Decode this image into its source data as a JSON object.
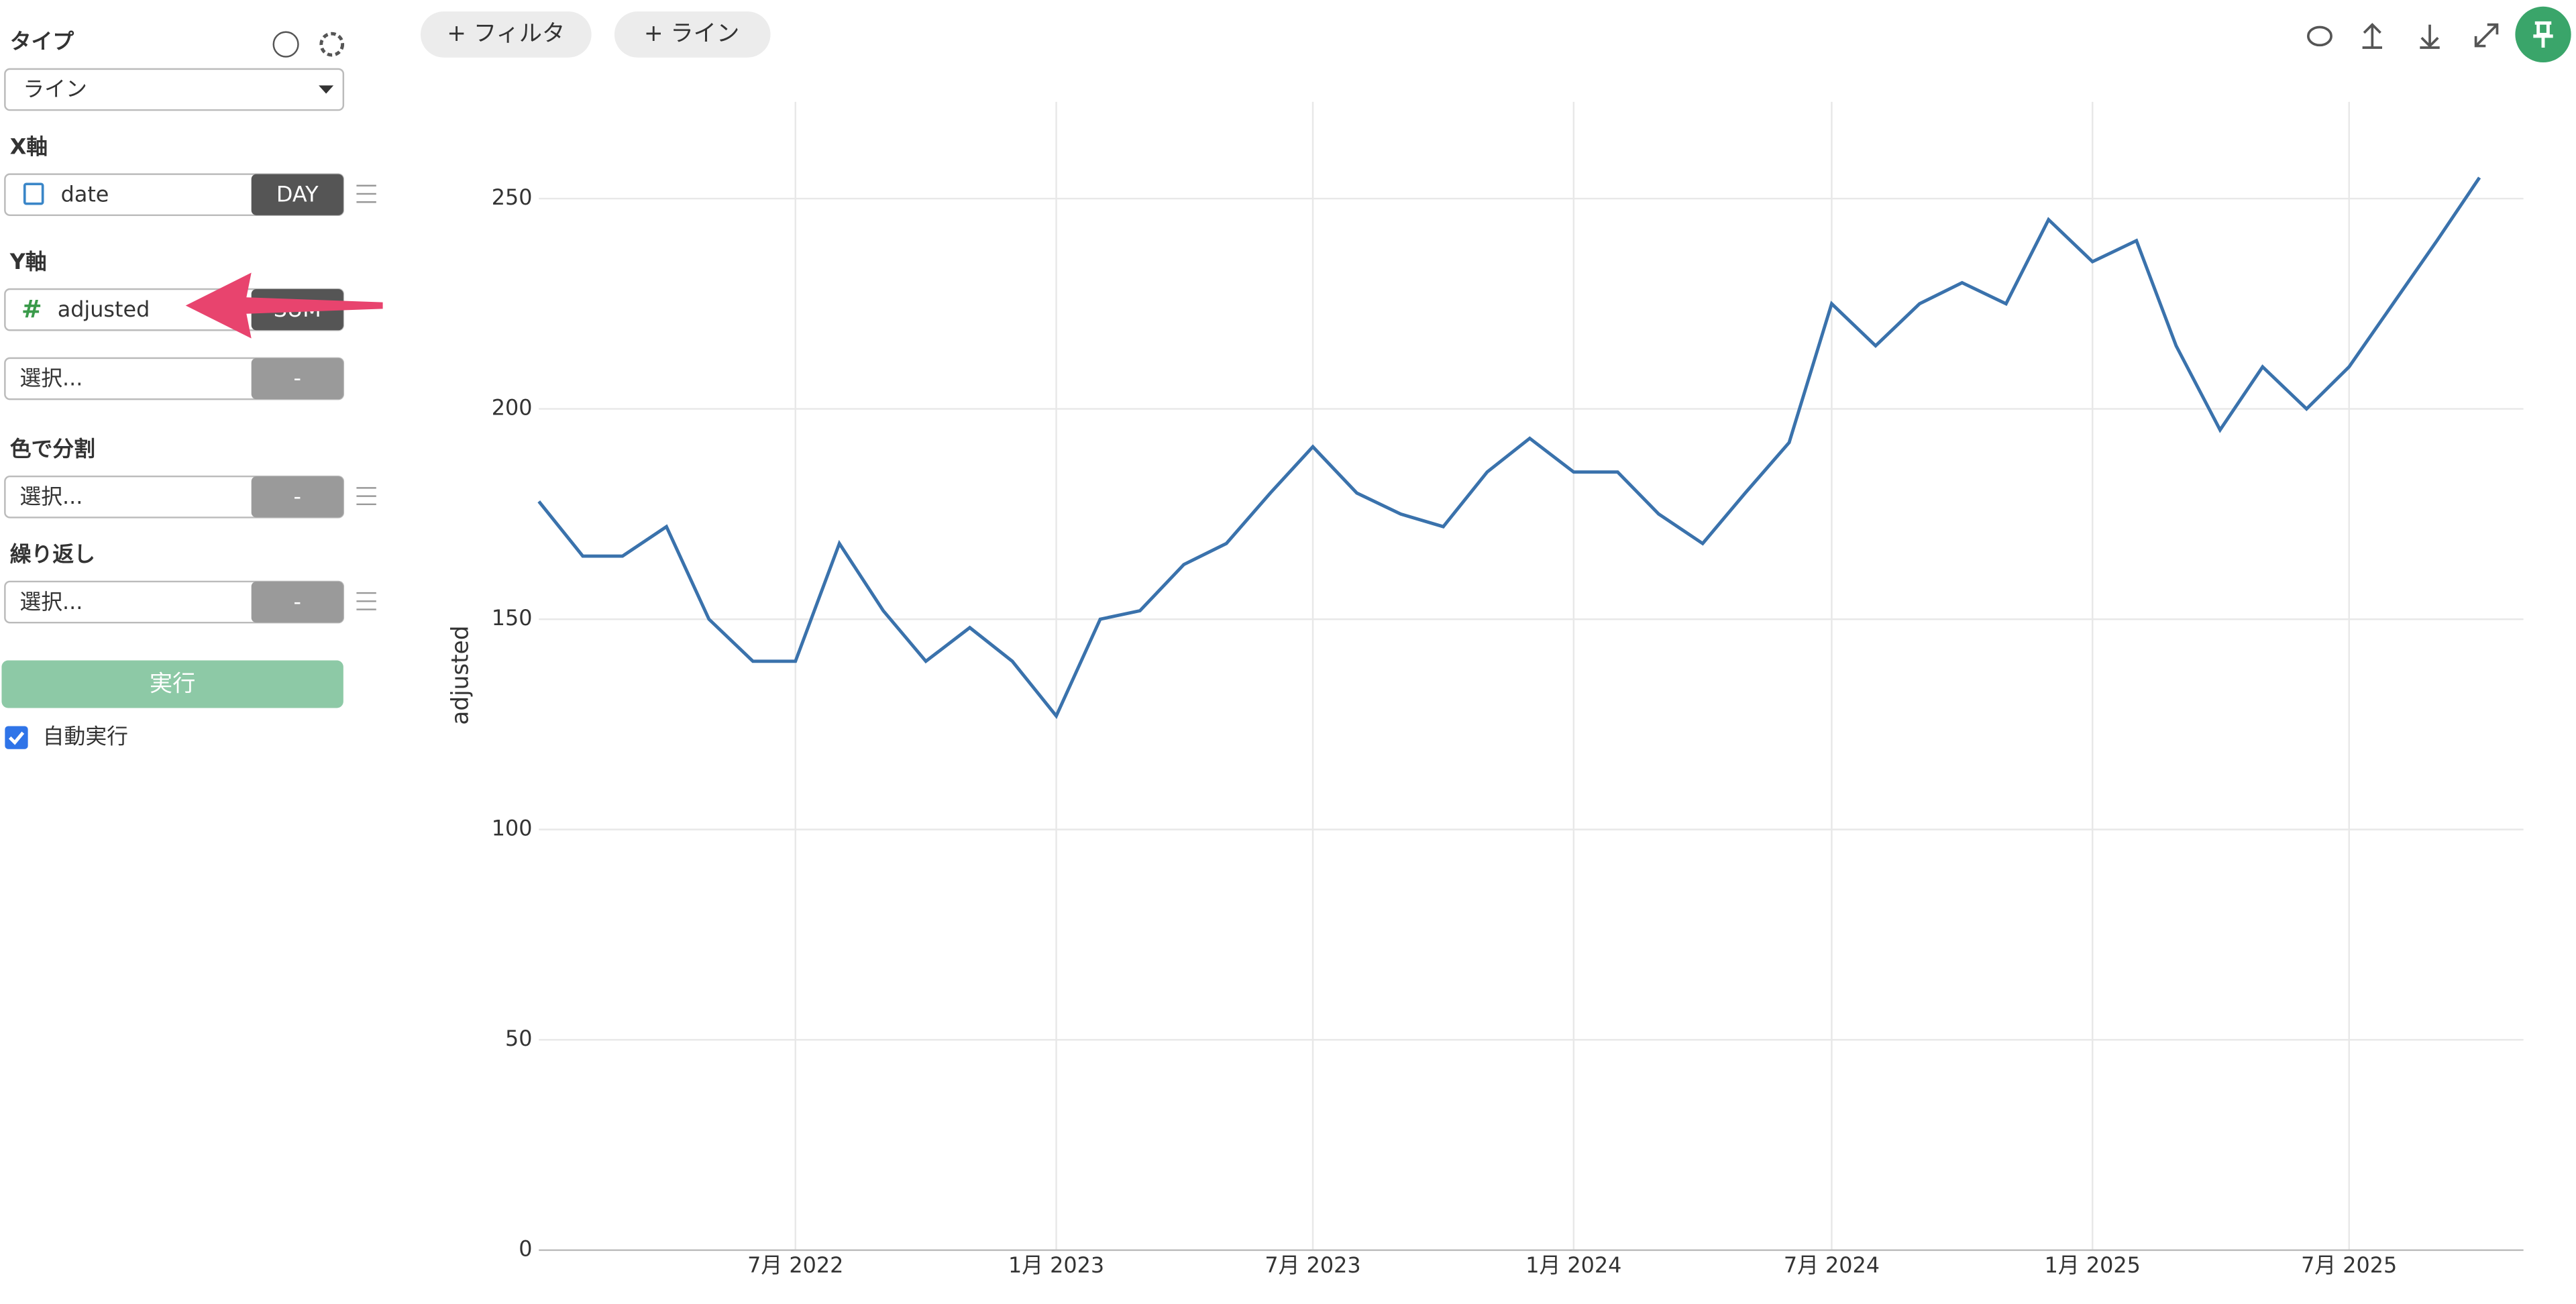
{
  "sidebar": {
    "type_label": "タイプ",
    "type_value": "ライン",
    "x_label": "X軸",
    "x_field": "date",
    "x_agg": "DAY",
    "y_label": "Y軸",
    "y_field": "adjusted",
    "y_agg": "SUM",
    "y2_placeholder": "選択...",
    "y2_agg": "-",
    "color_label": "色で分割",
    "color_placeholder": "選択...",
    "color_agg": "-",
    "repeat_label": "繰り返し",
    "repeat_placeholder": "選択...",
    "repeat_agg": "-",
    "run": "実行",
    "auto_run": "自動実行"
  },
  "toolbar": {
    "filter": "+ フィルタ",
    "line": "+ ライン"
  },
  "chart_data": {
    "type": "line",
    "y_label": "adjusted",
    "color": "#3a72ac",
    "grid": true,
    "x": [
      "2022-01",
      "2022-02",
      "2022-03",
      "2022-04",
      "2022-05",
      "2022-06",
      "2022-07",
      "2022-08",
      "2022-09",
      "2022-10",
      "2022-11",
      "2022-12",
      "2023-01",
      "2023-02",
      "2023-03",
      "2023-04",
      "2023-05",
      "2023-06",
      "2023-07",
      "2023-08",
      "2023-09",
      "2023-10",
      "2023-11",
      "2023-12",
      "2024-01",
      "2024-02",
      "2024-03",
      "2024-04",
      "2024-05",
      "2024-06",
      "2024-07",
      "2024-08",
      "2024-09",
      "2024-10",
      "2024-11",
      "2024-12",
      "2025-01",
      "2025-02",
      "2025-03",
      "2025-04",
      "2025-05",
      "2025-06",
      "2025-07",
      "2025-08",
      "2025-09",
      "2025-10"
    ],
    "values": [
      178,
      165,
      165,
      172,
      150,
      140,
      140,
      168,
      152,
      140,
      148,
      140,
      127,
      150,
      152,
      163,
      168,
      180,
      191,
      180,
      175,
      172,
      185,
      193,
      185,
      185,
      175,
      168,
      180,
      192,
      225,
      215,
      225,
      230,
      225,
      245,
      235,
      240,
      215,
      195,
      210,
      200,
      210,
      225,
      240,
      255
    ],
    "xlim": [
      "2022-01",
      "2025-11"
    ],
    "xticks": [
      {
        "value": "2022-07",
        "label": "7月 2022"
      },
      {
        "value": "2023-01",
        "label": "1月 2023"
      },
      {
        "value": "2023-07",
        "label": "7月 2023"
      },
      {
        "value": "2024-01",
        "label": "1月 2024"
      },
      {
        "value": "2024-07",
        "label": "7月 2024"
      },
      {
        "value": "2025-01",
        "label": "1月 2025"
      },
      {
        "value": "2025-07",
        "label": "7月 2025"
      }
    ],
    "ylim": [
      0,
      273
    ],
    "yticks": [
      0,
      50,
      100,
      150,
      200,
      250
    ]
  }
}
